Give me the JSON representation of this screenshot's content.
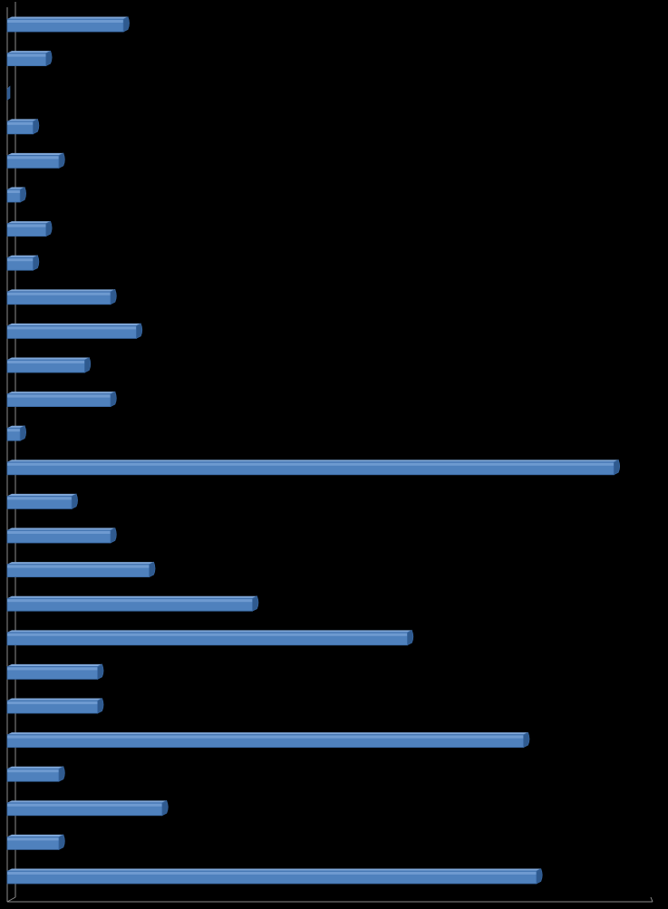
{
  "colors": {
    "background": "#000000",
    "bar_front": "#4f81bd",
    "bar_top": "#7ea6d8",
    "bar_side": "#2f5a8f",
    "bar_edge": "#3a6aa6",
    "axis": "#8c8c8c"
  },
  "chart_data": {
    "type": "bar",
    "orientation": "horizontal",
    "style": "3d-clustered",
    "title": "",
    "xlabel": "",
    "ylabel": "",
    "grid": false,
    "legend": "none",
    "xlim": [
      0,
      50
    ],
    "categories": [
      "",
      "",
      "",
      "",
      "",
      "",
      "",
      "",
      "",
      "",
      "",
      "",
      "",
      "",
      "",
      "",
      "",
      "",
      "",
      "",
      "",
      "",
      "",
      "",
      "",
      ""
    ],
    "values": [
      9,
      3,
      0,
      2,
      4,
      1,
      3,
      2,
      8,
      10,
      6,
      8,
      1,
      47,
      5,
      8,
      11,
      19,
      31,
      7,
      7,
      40,
      4,
      12,
      4,
      41
    ]
  }
}
